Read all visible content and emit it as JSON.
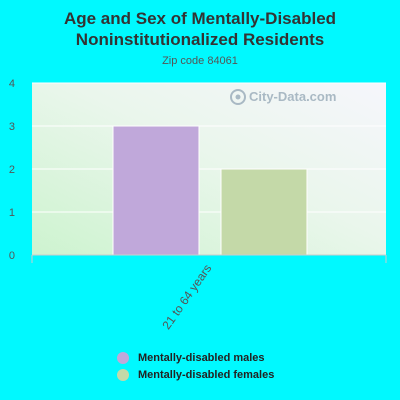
{
  "title_line1": "Age and Sex of Mentally-Disabled",
  "title_line2": "Noninstitutionalized Residents",
  "subtitle": "Zip code 84061",
  "watermark": "City-Data.com",
  "colors": {
    "background": "#00f9ff",
    "males": "#c0a8da",
    "females": "#c4d9a8"
  },
  "chart_data": {
    "type": "bar",
    "categories": [
      "21 to 64 years"
    ],
    "series": [
      {
        "name": "Mentally-disabled males",
        "values": [
          3
        ]
      },
      {
        "name": "Mentally-disabled females",
        "values": [
          2
        ]
      }
    ],
    "ylim": [
      0,
      4
    ],
    "yticks": [
      "0",
      "1",
      "2",
      "3",
      "4"
    ],
    "grid": true,
    "legend_position": "bottom"
  }
}
